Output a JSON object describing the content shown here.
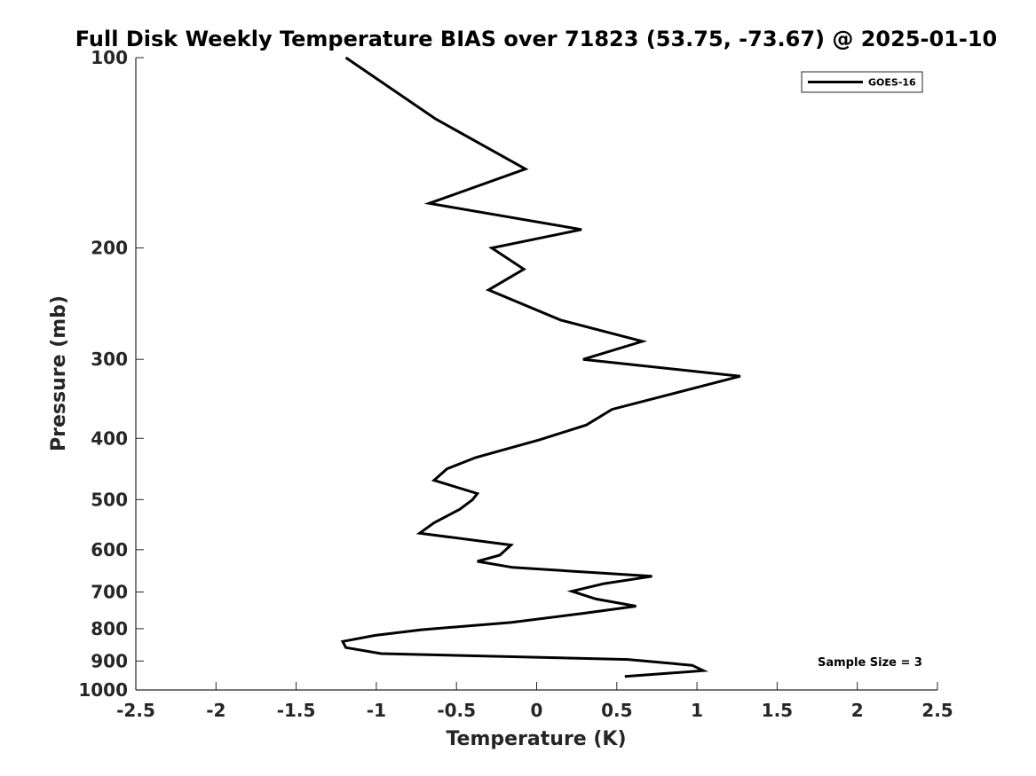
{
  "chart_data": {
    "type": "line",
    "title": "Full Disk Weekly Temperature BIAS over 71823 (53.75, -73.67) @ 2025-01-10",
    "xlabel": "Temperature (K)",
    "ylabel": "Pressure (mb)",
    "xlim": [
      -2.5,
      2.5
    ],
    "ylim": [
      100,
      1000
    ],
    "y_scale": "log",
    "y_reversed": true,
    "x_ticks": [
      "-2.5",
      "-2",
      "-1.5",
      "-1",
      "-0.5",
      "0",
      "0.5",
      "1",
      "1.5",
      "2",
      "2.5"
    ],
    "y_ticks": [
      "100",
      "200",
      "300",
      "400",
      "500",
      "600",
      "700",
      "800",
      "900",
      "1000"
    ],
    "legend_position": "top-right",
    "annotation": "Sample Size = 3",
    "series": [
      {
        "name": "GOES-16",
        "color": "#000000",
        "points": [
          {
            "x": -1.19,
            "y": 100
          },
          {
            "x": -0.63,
            "y": 125
          },
          {
            "x": -0.07,
            "y": 150
          },
          {
            "x": -0.67,
            "y": 170
          },
          {
            "x": 0.28,
            "y": 187
          },
          {
            "x": -0.28,
            "y": 200
          },
          {
            "x": -0.08,
            "y": 216
          },
          {
            "x": -0.3,
            "y": 233
          },
          {
            "x": 0.15,
            "y": 260
          },
          {
            "x": 0.66,
            "y": 281
          },
          {
            "x": 0.29,
            "y": 300
          },
          {
            "x": 1.27,
            "y": 319
          },
          {
            "x": 0.47,
            "y": 360
          },
          {
            "x": 0.31,
            "y": 381
          },
          {
            "x": 0.02,
            "y": 402
          },
          {
            "x": -0.38,
            "y": 429
          },
          {
            "x": -0.56,
            "y": 447
          },
          {
            "x": -0.64,
            "y": 466
          },
          {
            "x": -0.37,
            "y": 489
          },
          {
            "x": -0.4,
            "y": 500
          },
          {
            "x": -0.48,
            "y": 518
          },
          {
            "x": -0.64,
            "y": 544
          },
          {
            "x": -0.73,
            "y": 565
          },
          {
            "x": -0.16,
            "y": 590
          },
          {
            "x": -0.23,
            "y": 612
          },
          {
            "x": -0.37,
            "y": 626
          },
          {
            "x": -0.15,
            "y": 640
          },
          {
            "x": 0.72,
            "y": 661
          },
          {
            "x": 0.42,
            "y": 679
          },
          {
            "x": 0.22,
            "y": 698
          },
          {
            "x": 0.37,
            "y": 718
          },
          {
            "x": 0.62,
            "y": 737
          },
          {
            "x": 0.3,
            "y": 756
          },
          {
            "x": -0.16,
            "y": 782
          },
          {
            "x": -0.72,
            "y": 803
          },
          {
            "x": -1.01,
            "y": 820
          },
          {
            "x": -1.21,
            "y": 838
          },
          {
            "x": -1.19,
            "y": 857
          },
          {
            "x": -0.97,
            "y": 876
          },
          {
            "x": 0.57,
            "y": 895
          },
          {
            "x": 0.97,
            "y": 914
          },
          {
            "x": 1.04,
            "y": 932
          },
          {
            "x": 0.55,
            "y": 952
          }
        ]
      }
    ]
  }
}
